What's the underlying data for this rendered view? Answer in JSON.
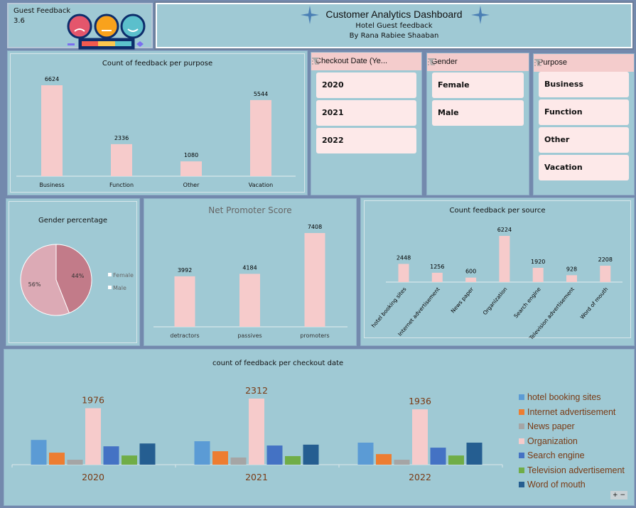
{
  "kpi": {
    "label": "Guest Feedback",
    "value": "3.6"
  },
  "header": {
    "title": "Customer Analytics Dashboard",
    "subtitle": "Hotel Guest feedback",
    "author": "By Rana Rabiee Shaaban"
  },
  "colors": {
    "bar": "#f6cbcb",
    "female": "#c27b89",
    "male": "#dcaab5",
    "panel": "#9fc9d4",
    "legend_text": "#7a3a14"
  },
  "slicers": [
    {
      "title": "Checkout Date (Ye...",
      "items": [
        "2020",
        "2021",
        "2022"
      ]
    },
    {
      "title": "Gender",
      "items": [
        "Female",
        "Male"
      ]
    },
    {
      "title": "Purpose",
      "items": [
        "Business",
        "Function",
        "Other",
        "Vacation"
      ]
    }
  ],
  "chart_data": [
    {
      "type": "bar",
      "title": "Count of feedback per purpose",
      "categories": [
        "Business",
        "Function",
        "Other",
        "Vacation"
      ],
      "values": [
        6624,
        2336,
        1080,
        5544
      ],
      "data_labels": [
        "6624",
        "2336",
        "1080",
        "5544"
      ]
    },
    {
      "type": "pie",
      "title": "Gender percentage",
      "categories": [
        "Female",
        "Male"
      ],
      "values": [
        44,
        56
      ],
      "data_labels": [
        "44%",
        "56%"
      ],
      "legend": "right"
    },
    {
      "type": "bar",
      "title": "Net Promoter Score",
      "categories": [
        "detractors",
        "passives",
        "promoters"
      ],
      "values": [
        3992,
        4184,
        7408
      ],
      "data_labels": [
        "3992",
        "4184",
        "7408"
      ]
    },
    {
      "type": "bar",
      "title": "Count feedback per source",
      "categories": [
        "hotel booking sites",
        "Internet advertisement",
        "News paper",
        "Organization",
        "Search engine",
        "Television advertisement",
        "Word of mouth"
      ],
      "values": [
        2448,
        1256,
        600,
        6224,
        1920,
        928,
        2208
      ],
      "data_labels": [
        "2448",
        "1256",
        "600",
        "6224",
        "1920",
        "928",
        "2208"
      ]
    },
    {
      "type": "bar",
      "title": "count of feedback per checkout date",
      "categories": [
        "2020",
        "2021",
        "2022"
      ],
      "legend": "right",
      "series": [
        {
          "name": "hotel booking sites",
          "color": "#5b9bd5",
          "values": [
            865,
            820,
            770
          ]
        },
        {
          "name": "Internet advertisement",
          "color": "#ed7d31",
          "values": [
            420,
            470,
            370
          ]
        },
        {
          "name": "News paper",
          "color": "#a5a5a5",
          "values": [
            173,
            250,
            173
          ]
        },
        {
          "name": "Organization",
          "color": "#f6cbcb",
          "values": [
            1976,
            2312,
            1936
          ],
          "data_labels": [
            "1976",
            "2312",
            "1936"
          ]
        },
        {
          "name": "Search engine",
          "color": "#4472c4",
          "values": [
            642,
            670,
            595
          ]
        },
        {
          "name": "Television advertisement",
          "color": "#70ad47",
          "values": [
            321,
            300,
            321
          ]
        },
        {
          "name": "Word of mouth",
          "color": "#255e91",
          "values": [
            741,
            700,
            770
          ]
        }
      ]
    }
  ],
  "zoom_controls": {
    "plus": "+",
    "minus": "−"
  }
}
